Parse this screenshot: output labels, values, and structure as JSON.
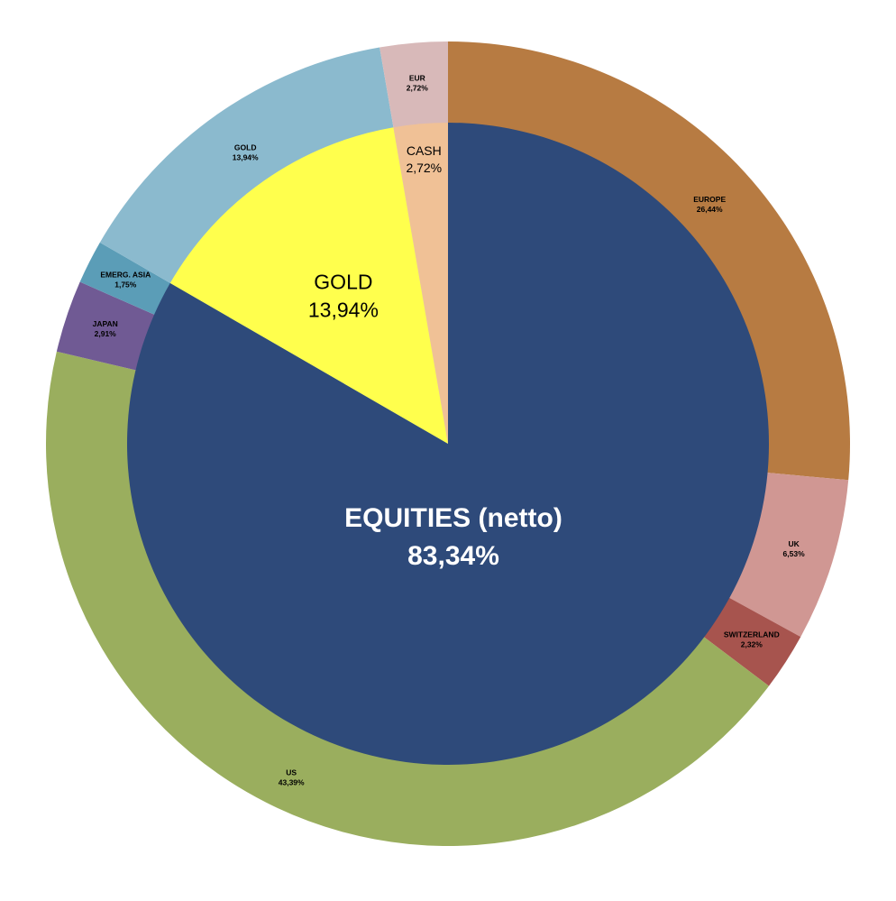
{
  "chart_data": {
    "type": "pie",
    "variant": "nested-donut",
    "title": "",
    "inner": [
      {
        "name": "EQUITIES (netto)",
        "value": 83.34,
        "label": "83,34%",
        "color": "#2e4a7a"
      },
      {
        "name": "GOLD",
        "value": 13.94,
        "label": "13,94%",
        "color": "#ffff4d"
      },
      {
        "name": "CASH",
        "value": 2.72,
        "label": "2,72%",
        "color": "#f0c196"
      }
    ],
    "outer": [
      {
        "name": "EUROPE",
        "value": 26.44,
        "label": "26,44%",
        "color": "#b77b42"
      },
      {
        "name": "UK",
        "value": 6.53,
        "label": "6,53%",
        "color": "#d09793"
      },
      {
        "name": "SWITZERLAND",
        "value": 2.32,
        "label": "2,32%",
        "color": "#a7544e"
      },
      {
        "name": "US",
        "value": 43.39,
        "label": "43,39%",
        "color": "#9aae5e"
      },
      {
        "name": "JAPAN",
        "value": 2.91,
        "label": "2,91%",
        "color": "#705a94"
      },
      {
        "name": "EMERG. ASIA",
        "value": 1.75,
        "label": "1,75%",
        "color": "#5b9db7"
      },
      {
        "name": "GOLD",
        "value": 13.94,
        "label": "13,94%",
        "color": "#8bbace"
      },
      {
        "name": "EUR",
        "value": 2.72,
        "label": "2,72%",
        "color": "#d8b9b9"
      }
    ],
    "start_angle": "12 o'clock",
    "direction": "clockwise",
    "legend": "none"
  }
}
